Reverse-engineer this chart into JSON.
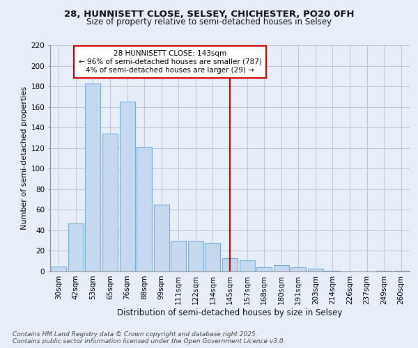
{
  "title1": "28, HUNNISETT CLOSE, SELSEY, CHICHESTER, PO20 0FH",
  "title2": "Size of property relative to semi-detached houses in Selsey",
  "xlabel": "Distribution of semi-detached houses by size in Selsey",
  "ylabel": "Number of semi-detached properties",
  "categories": [
    "30sqm",
    "42sqm",
    "53sqm",
    "65sqm",
    "76sqm",
    "88sqm",
    "99sqm",
    "111sqm",
    "122sqm",
    "134sqm",
    "145sqm",
    "157sqm",
    "168sqm",
    "180sqm",
    "191sqm",
    "203sqm",
    "214sqm",
    "226sqm",
    "237sqm",
    "249sqm",
    "260sqm"
  ],
  "values": [
    5,
    47,
    183,
    134,
    165,
    121,
    65,
    30,
    30,
    28,
    13,
    11,
    4,
    6,
    4,
    3,
    1,
    0,
    0,
    1,
    1
  ],
  "vline_index": 10,
  "bar_color": "#c5d8ee",
  "bar_edge_color": "#7bafd4",
  "annotation_title": "28 HUNNISETT CLOSE: 143sqm",
  "annotation_line1": "← 96% of semi-detached houses are smaller (787)",
  "annotation_line2": "4% of semi-detached houses are larger (29) →",
  "ylim": [
    0,
    220
  ],
  "yticks": [
    0,
    20,
    40,
    60,
    80,
    100,
    120,
    140,
    160,
    180,
    200,
    220
  ],
  "footer_line1": "Contains HM Land Registry data © Crown copyright and database right 2025.",
  "footer_line2": "Contains public sector information licensed under the Open Government Licence v3.0.",
  "bg_color": "#e8eef7",
  "plot_bg_color": "#e8eef7",
  "annotation_box_color": "#ffffff",
  "annotation_box_edge": "#cc0000",
  "vline_color": "#cc0000",
  "grid_color": "#c0c8d8",
  "title1_fontsize": 9.5,
  "title2_fontsize": 8.5,
  "ylabel_fontsize": 8,
  "xlabel_fontsize": 8.5,
  "tick_fontsize": 7.5,
  "annotation_fontsize": 7.5,
  "footer_fontsize": 6.5
}
